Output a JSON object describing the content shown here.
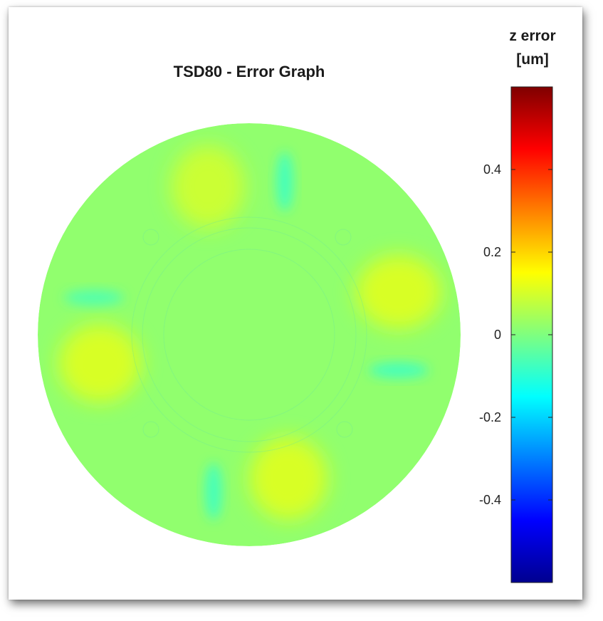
{
  "chart_data": {
    "type": "heatmap",
    "title": "TSD80 - Error Graph",
    "shape": "circular disc",
    "colorbar": {
      "label_line1": "z error",
      "label_line2": "[um]",
      "colormap": "jet",
      "range": [
        -0.6,
        0.6
      ],
      "ticks": [
        0.4,
        0.2,
        0,
        -0.2,
        -0.4
      ],
      "tick_labels": [
        "0.4",
        "0.2",
        "0",
        "-0.2",
        "-0.4"
      ]
    },
    "background_value": 0.02,
    "features": [
      {
        "kind": "positive lobe",
        "position": "top",
        "value": 0.1
      },
      {
        "kind": "positive lobe",
        "position": "right",
        "value": 0.12
      },
      {
        "kind": "positive lobe",
        "position": "bottom",
        "value": 0.12
      },
      {
        "kind": "positive lobe",
        "position": "left",
        "value": 0.12
      },
      {
        "kind": "negative streak",
        "position": "top",
        "value": -0.1
      },
      {
        "kind": "negative streak",
        "position": "right",
        "value": -0.1
      },
      {
        "kind": "negative streak",
        "position": "bottom",
        "value": -0.1
      },
      {
        "kind": "negative streak",
        "position": "left",
        "value": -0.08
      }
    ]
  }
}
